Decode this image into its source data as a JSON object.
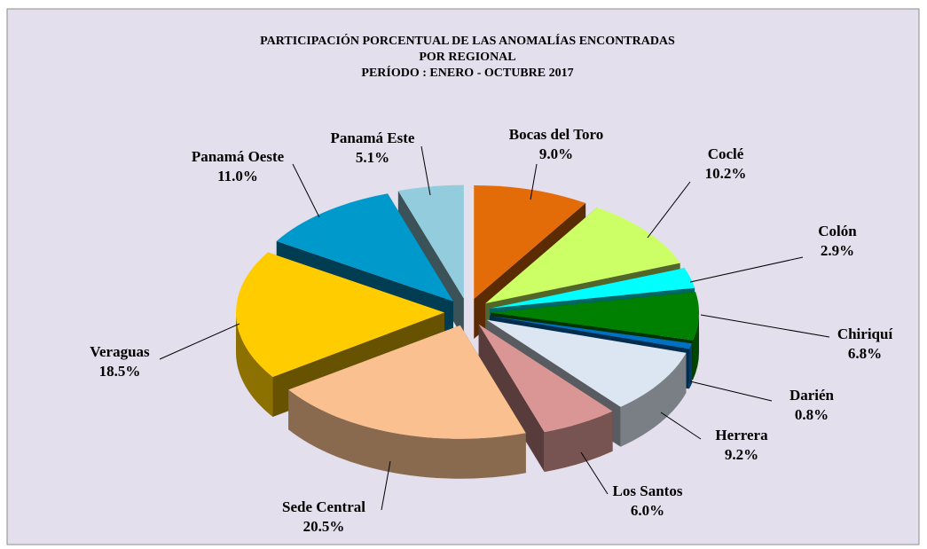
{
  "chart_data": {
    "type": "pie",
    "title": [
      "PARTICIPACIÓN PORCENTUAL DE LAS ANOMALÍAS  ENCONTRADAS",
      "POR REGIONAL",
      "PERÍODO : ENERO - OCTUBRE 2017"
    ],
    "categories": [
      "Bocas del Toro",
      "Coclé",
      "Colón",
      "Chiriquí",
      "Darién",
      "Herrera",
      "Los Santos",
      "Sede Central",
      "Veraguas",
      "Panamá Oeste",
      "Panamá Este"
    ],
    "values": [
      9.0,
      10.2,
      2.9,
      6.8,
      0.8,
      9.2,
      6.0,
      20.5,
      18.5,
      11.0,
      5.1
    ],
    "value_labels": [
      "9.0%",
      "10.2%",
      "2.9%",
      "6.8%",
      "0.8%",
      "9.2%",
      "6.0%",
      "20.5%",
      "18.5%",
      "11.0%",
      "5.1%"
    ],
    "colors": [
      "#e36c09",
      "#ccff66",
      "#00ffff",
      "#008000",
      "#0070c0",
      "#dce6f2",
      "#d99694",
      "#fac090",
      "#ffcc00",
      "#0099cc",
      "#93cddd"
    ]
  }
}
